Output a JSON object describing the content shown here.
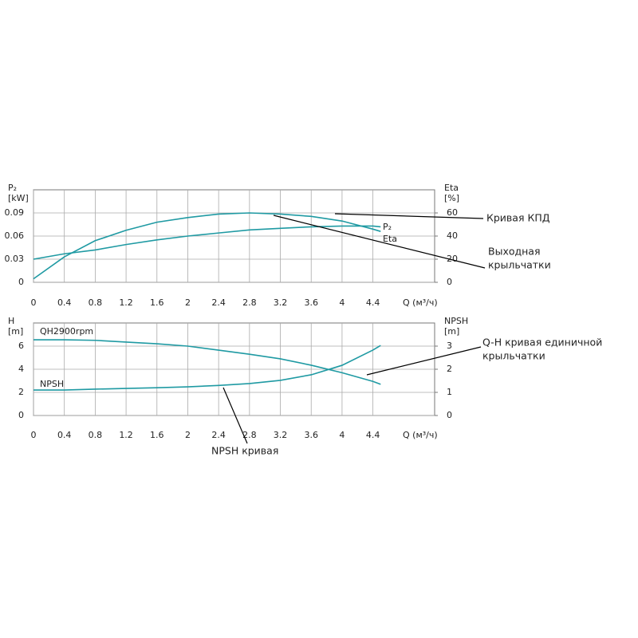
{
  "chart_data": [
    {
      "type": "line",
      "x": [
        0,
        0.4,
        0.8,
        1.2,
        1.6,
        2.0,
        2.4,
        2.8,
        3.2,
        3.6,
        4.0,
        4.4,
        4.5
      ],
      "xlabel": "Q (м³/ч)",
      "xlim": [
        0,
        5.2
      ],
      "xticks": [
        0,
        0.4,
        0.8,
        1.2,
        1.6,
        2.0,
        2.4,
        2.8,
        3.2,
        3.6,
        4.0,
        4.4
      ],
      "ylabel": [
        "P₂",
        "[kW]"
      ],
      "ylim": [
        0,
        0.12
      ],
      "yticks": [
        0,
        0.03,
        0.06,
        0.09
      ],
      "y2label": [
        "Eta",
        "[%]"
      ],
      "y2lim": [
        0,
        80
      ],
      "y2ticks": [
        0,
        20,
        40,
        60
      ],
      "grid": true,
      "series": [
        {
          "name": "P₂",
          "color": "#1f9aa3",
          "values": [
            0.03,
            0.037,
            0.042,
            0.049,
            0.055,
            0.06,
            0.064,
            0.068,
            0.07,
            0.072,
            0.073,
            0.073,
            0.072
          ]
        },
        {
          "name": "Eta",
          "color": "#1f9aa3",
          "axis": "y2",
          "values": [
            3,
            22,
            36,
            45,
            52,
            56,
            59,
            60,
            59,
            57,
            53,
            46,
            44
          ]
        }
      ],
      "annotations": [
        {
          "text": [
            "Кривая КПД"
          ]
        },
        {
          "text": [
            "Выходная",
            "крыльчатки"
          ]
        }
      ]
    },
    {
      "type": "line",
      "x": [
        0,
        0.4,
        0.8,
        1.2,
        1.6,
        2.0,
        2.4,
        2.8,
        3.2,
        3.6,
        4.0,
        4.4,
        4.5
      ],
      "xlabel": "Q (м³/ч)",
      "xlim": [
        0,
        5.2
      ],
      "xticks": [
        0,
        0.4,
        0.8,
        1.2,
        1.6,
        2.0,
        2.4,
        2.8,
        3.2,
        3.6,
        4.0,
        4.4
      ],
      "ylabel": [
        "H",
        "[m]"
      ],
      "ylim": [
        0,
        8
      ],
      "yticks": [
        0,
        2,
        4,
        6
      ],
      "y2label": [
        "NPSH",
        "[m]"
      ],
      "y2lim": [
        0,
        4
      ],
      "y2ticks": [
        0,
        1,
        2,
        3
      ],
      "grid": true,
      "series": [
        {
          "name": "QH2900rpm",
          "color": "#1f9aa3",
          "values": [
            6.55,
            6.55,
            6.5,
            6.35,
            6.2,
            6.0,
            5.65,
            5.3,
            4.9,
            4.35,
            3.7,
            2.95,
            2.7
          ]
        },
        {
          "name": "NPSH",
          "color": "#1f9aa3",
          "axis": "y2",
          "values": [
            1.1,
            1.1,
            1.14,
            1.17,
            1.2,
            1.24,
            1.3,
            1.38,
            1.52,
            1.76,
            2.17,
            2.83,
            3.03
          ]
        }
      ],
      "annotations": [
        {
          "text": [
            "Q-H кривая единичной",
            "крыльчатки"
          ]
        },
        {
          "text": [
            "NPSH кривая"
          ]
        }
      ]
    }
  ]
}
